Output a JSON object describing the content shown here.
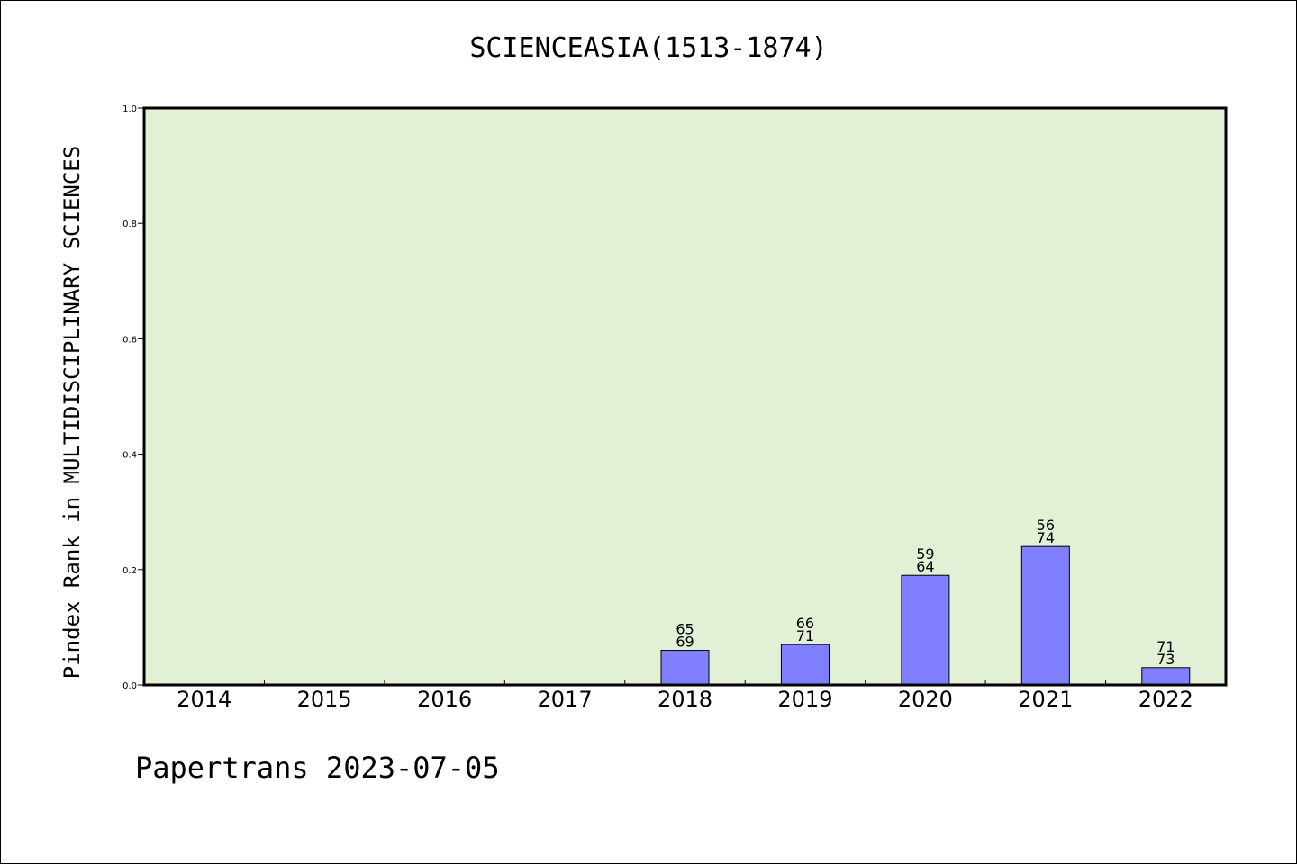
{
  "chart_data": {
    "type": "bar",
    "title": "SCIENCEASIA(1513-1874)",
    "xlabel": "",
    "ylabel": "Pindex Rank in MULTIDISCIPLINARY SCIENCES",
    "ylim": [
      0,
      1.0
    ],
    "yticks": [
      "0.0",
      "0.2",
      "0.4",
      "0.6",
      "0.8",
      "1.0"
    ],
    "categories": [
      "2014",
      "2015",
      "2016",
      "2017",
      "2018",
      "2019",
      "2020",
      "2021",
      "2022"
    ],
    "values": [
      null,
      null,
      null,
      null,
      0.06,
      0.07,
      0.19,
      0.24,
      0.03
    ],
    "labels_top": [
      "",
      "",
      "",
      "",
      "65",
      "66",
      "59",
      "56",
      "71"
    ],
    "labels_bottom": [
      "",
      "",
      "",
      "",
      "69",
      "71",
      "64",
      "74",
      "73"
    ],
    "grid": false,
    "colors": {
      "plot_background": "#e2f0d6",
      "bar_fill": "#8080ff",
      "bar_stroke": "#000000"
    }
  },
  "footer": {
    "text": "Papertrans 2023-07-05"
  }
}
